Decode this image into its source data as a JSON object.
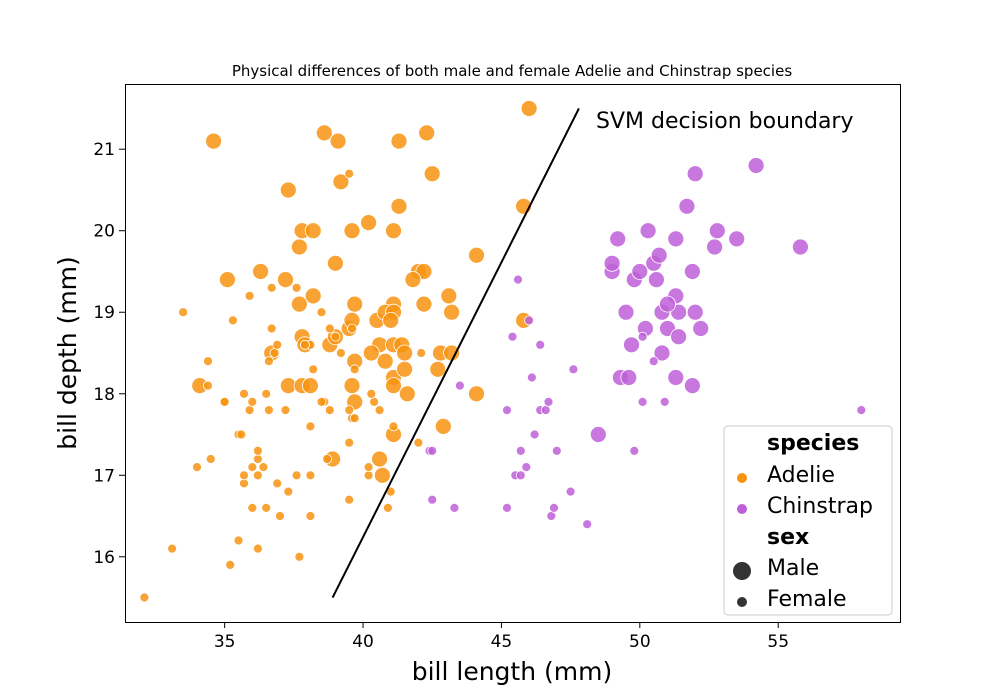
{
  "chart_data": {
    "type": "scatter",
    "title": "Physical differences of both male and female Adelie and Chinstrap species",
    "xlabel": "bill length (mm)",
    "ylabel": "bill depth (mm)",
    "xlim": [
      31.4,
      59.4
    ],
    "ylim": [
      15.2,
      21.8
    ],
    "xticks": [
      "35",
      "40",
      "45",
      "50",
      "55"
    ],
    "yticks": [
      "16",
      "17",
      "18",
      "19",
      "20",
      "21"
    ],
    "grid": false,
    "legend_position": "bottom-right",
    "legend": {
      "hue_title": "species",
      "size_title": "sex",
      "entries": {
        "adelie": "Adelie",
        "chinstrap": "Chinstrap",
        "male": "Male",
        "female": "Female"
      }
    },
    "colors": {
      "Adelie": "#f7930f",
      "Chinstrap": "#bd5fd8"
    },
    "annotation": {
      "text": "SVM decision boundary",
      "line": [
        [
          38.9,
          15.5
        ],
        [
          47.8,
          21.5
        ]
      ]
    },
    "series": [
      {
        "name": "Adelie",
        "sex": "Male",
        "points": [
          [
            34.6,
            21.1
          ],
          [
            38.6,
            21.2
          ],
          [
            39.1,
            21.1
          ],
          [
            41.3,
            21.1
          ],
          [
            42.3,
            21.2
          ],
          [
            46.0,
            21.5
          ],
          [
            37.3,
            20.5
          ],
          [
            39.2,
            20.6
          ],
          [
            42.5,
            20.7
          ],
          [
            37.8,
            20.0
          ],
          [
            38.2,
            20.0
          ],
          [
            39.6,
            20.0
          ],
          [
            40.2,
            20.1
          ],
          [
            41.1,
            20.0
          ],
          [
            41.3,
            20.3
          ],
          [
            45.8,
            20.3
          ],
          [
            37.7,
            19.8
          ],
          [
            35.1,
            19.4
          ],
          [
            36.3,
            19.5
          ],
          [
            37.2,
            19.4
          ],
          [
            39.0,
            19.6
          ],
          [
            42.0,
            19.5
          ],
          [
            42.2,
            19.5
          ],
          [
            44.1,
            19.7
          ],
          [
            37.7,
            19.1
          ],
          [
            38.2,
            19.2
          ],
          [
            39.7,
            19.1
          ],
          [
            41.1,
            19.1
          ],
          [
            42.2,
            19.1
          ],
          [
            43.1,
            19.2
          ],
          [
            40.5,
            18.9
          ],
          [
            40.8,
            19.0
          ],
          [
            41.1,
            19.0
          ],
          [
            41.8,
            19.4
          ],
          [
            43.2,
            19.0
          ],
          [
            45.8,
            18.9
          ],
          [
            37.8,
            18.7
          ],
          [
            38.8,
            18.6
          ],
          [
            39.5,
            18.8
          ],
          [
            39.6,
            18.9
          ],
          [
            40.6,
            18.6
          ],
          [
            41.0,
            18.9
          ],
          [
            41.1,
            18.6
          ],
          [
            41.4,
            18.6
          ],
          [
            41.5,
            18.5
          ],
          [
            42.8,
            18.5
          ],
          [
            43.2,
            18.5
          ],
          [
            36.7,
            18.5
          ],
          [
            39.0,
            18.7
          ],
          [
            39.7,
            18.4
          ],
          [
            40.3,
            18.5
          ],
          [
            40.8,
            18.4
          ],
          [
            41.1,
            18.2
          ],
          [
            41.5,
            18.3
          ],
          [
            42.7,
            18.3
          ],
          [
            34.1,
            18.1
          ],
          [
            37.3,
            18.1
          ],
          [
            37.8,
            18.1
          ],
          [
            38.1,
            18.1
          ],
          [
            39.6,
            18.1
          ],
          [
            41.1,
            18.1
          ],
          [
            41.6,
            18.0
          ],
          [
            44.1,
            18.0
          ],
          [
            39.7,
            17.9
          ],
          [
            41.1,
            17.5
          ],
          [
            42.9,
            17.6
          ],
          [
            38.9,
            17.2
          ],
          [
            40.7,
            17.0
          ],
          [
            40.6,
            17.2
          ],
          [
            37.9,
            18.6
          ]
        ]
      },
      {
        "name": "Adelie",
        "sex": "Female",
        "points": [
          [
            32.1,
            15.5
          ],
          [
            33.1,
            16.1
          ],
          [
            35.2,
            15.9
          ],
          [
            36.2,
            16.1
          ],
          [
            37.7,
            16.0
          ],
          [
            35.5,
            16.2
          ],
          [
            36.0,
            16.6
          ],
          [
            36.5,
            16.6
          ],
          [
            37.0,
            16.5
          ],
          [
            38.1,
            16.5
          ],
          [
            35.7,
            16.9
          ],
          [
            36.9,
            16.9
          ],
          [
            37.3,
            16.8
          ],
          [
            39.5,
            16.7
          ],
          [
            35.7,
            17.0
          ],
          [
            36.0,
            17.1
          ],
          [
            36.2,
            17.0
          ],
          [
            36.4,
            17.1
          ],
          [
            37.6,
            17.0
          ],
          [
            38.1,
            17.0
          ],
          [
            40.2,
            17.0
          ],
          [
            40.2,
            17.1
          ],
          [
            41.0,
            16.8
          ],
          [
            34.0,
            17.1
          ],
          [
            34.5,
            17.2
          ],
          [
            36.2,
            17.2
          ],
          [
            36.2,
            17.3
          ],
          [
            38.7,
            17.2
          ],
          [
            39.5,
            17.4
          ],
          [
            35.5,
            17.5
          ],
          [
            35.6,
            17.5
          ],
          [
            39.6,
            17.7
          ],
          [
            41.1,
            17.6
          ],
          [
            38.1,
            17.6
          ],
          [
            35.9,
            17.8
          ],
          [
            36.6,
            17.8
          ],
          [
            37.2,
            17.8
          ],
          [
            38.8,
            17.8
          ],
          [
            39.5,
            17.8
          ],
          [
            39.7,
            17.7
          ],
          [
            40.6,
            17.8
          ],
          [
            35.0,
            17.9
          ],
          [
            35.0,
            17.9
          ],
          [
            36.0,
            17.9
          ],
          [
            38.6,
            17.9
          ],
          [
            40.4,
            17.9
          ],
          [
            34.4,
            18.1
          ],
          [
            35.7,
            18.0
          ],
          [
            36.5,
            18.0
          ],
          [
            38.5,
            17.9
          ],
          [
            40.3,
            18.0
          ],
          [
            39.7,
            18.3
          ],
          [
            38.2,
            18.3
          ],
          [
            34.4,
            18.4
          ],
          [
            36.6,
            18.4
          ],
          [
            36.8,
            18.5
          ],
          [
            38.1,
            18.6
          ],
          [
            39.2,
            18.5
          ],
          [
            42.1,
            18.5
          ],
          [
            37.9,
            18.6
          ],
          [
            39.0,
            18.7
          ],
          [
            39.6,
            18.8
          ],
          [
            36.7,
            18.8
          ],
          [
            35.3,
            18.9
          ],
          [
            36.9,
            18.6
          ],
          [
            38.8,
            18.8
          ],
          [
            35.9,
            19.2
          ],
          [
            36.7,
            19.3
          ],
          [
            37.6,
            19.3
          ],
          [
            38.5,
            19.0
          ],
          [
            33.5,
            19.0
          ],
          [
            37.9,
            18.6
          ],
          [
            39.5,
            20.7
          ],
          [
            40.9,
            16.6
          ],
          [
            42.0,
            17.4
          ]
        ]
      },
      {
        "name": "Chinstrap",
        "sex": "Male",
        "points": [
          [
            48.5,
            17.5
          ],
          [
            49.3,
            18.2
          ],
          [
            49.6,
            18.2
          ],
          [
            51.3,
            18.2
          ],
          [
            51.9,
            18.1
          ],
          [
            49.0,
            19.5
          ],
          [
            49.0,
            19.6
          ],
          [
            49.8,
            19.4
          ],
          [
            50.5,
            19.6
          ],
          [
            50.6,
            19.4
          ],
          [
            50.7,
            19.7
          ],
          [
            50.0,
            19.5
          ],
          [
            51.9,
            19.5
          ],
          [
            49.2,
            19.9
          ],
          [
            50.3,
            20.0
          ],
          [
            51.3,
            19.9
          ],
          [
            52.7,
            19.8
          ],
          [
            52.8,
            20.0
          ],
          [
            53.5,
            19.9
          ],
          [
            55.8,
            19.8
          ],
          [
            51.7,
            20.3
          ],
          [
            52.0,
            20.7
          ],
          [
            54.2,
            20.8
          ],
          [
            49.7,
            18.6
          ],
          [
            50.2,
            18.8
          ],
          [
            50.8,
            18.5
          ],
          [
            51.0,
            18.8
          ],
          [
            51.4,
            18.7
          ],
          [
            52.2,
            18.8
          ],
          [
            49.5,
            19.0
          ],
          [
            51.3,
            19.2
          ],
          [
            51.4,
            19.0
          ],
          [
            52.0,
            19.0
          ],
          [
            50.8,
            19.0
          ],
          [
            51.0,
            19.1
          ]
        ]
      },
      {
        "name": "Chinstrap",
        "sex": "Female",
        "points": [
          [
            43.5,
            18.1
          ],
          [
            42.4,
            17.3
          ],
          [
            42.5,
            17.3
          ],
          [
            42.5,
            16.7
          ],
          [
            43.3,
            16.6
          ],
          [
            45.2,
            16.6
          ],
          [
            45.2,
            17.8
          ],
          [
            45.4,
            18.7
          ],
          [
            45.5,
            17.0
          ],
          [
            45.6,
            19.4
          ],
          [
            45.7,
            17.3
          ],
          [
            45.7,
            17.0
          ],
          [
            45.9,
            17.1
          ],
          [
            46.0,
            18.9
          ],
          [
            46.1,
            18.2
          ],
          [
            46.2,
            17.5
          ],
          [
            46.4,
            18.6
          ],
          [
            46.4,
            17.8
          ],
          [
            46.6,
            17.8
          ],
          [
            46.7,
            17.9
          ],
          [
            46.8,
            16.5
          ],
          [
            46.9,
            16.6
          ],
          [
            47.0,
            17.3
          ],
          [
            47.5,
            16.8
          ],
          [
            47.6,
            18.3
          ],
          [
            48.1,
            16.4
          ],
          [
            49.8,
            17.3
          ],
          [
            50.1,
            17.9
          ],
          [
            50.1,
            18.7
          ],
          [
            50.5,
            18.4
          ],
          [
            50.9,
            17.9
          ],
          [
            58.0,
            17.8
          ]
        ]
      }
    ]
  }
}
